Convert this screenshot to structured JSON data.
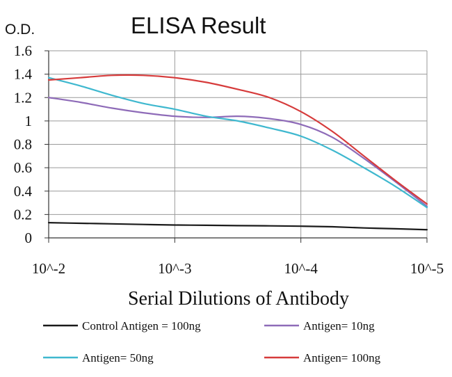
{
  "chart_data": {
    "type": "line",
    "title": "ELISA Result",
    "ylabel": "O.D.",
    "xlabel": "Serial Dilutions of Antibody",
    "categories": [
      "10^-2",
      "10^-3",
      "10^-4",
      "10^-5"
    ],
    "x": [
      0,
      0.25,
      0.5,
      0.75,
      1,
      1.25,
      1.5,
      1.75,
      2,
      2.25,
      2.5,
      2.75,
      3
    ],
    "ylim": [
      0,
      1.6
    ],
    "yticks": [
      "0",
      "0.2",
      "0.4",
      "0.6",
      "0.8",
      "1",
      "1.2",
      "1.4",
      "1.6"
    ],
    "grid": true,
    "legend_position": "bottom",
    "series": [
      {
        "name": "Control Antigen = 100ng",
        "color": "#1a1a1a",
        "values": [
          0.13,
          0.125,
          0.12,
          0.115,
          0.11,
          0.108,
          0.105,
          0.103,
          0.1,
          0.095,
          0.085,
          0.078,
          0.07
        ]
      },
      {
        "name": "Antigen= 10ng",
        "color": "#8e6bb8",
        "values": [
          1.2,
          1.16,
          1.11,
          1.07,
          1.04,
          1.03,
          1.04,
          1.02,
          0.97,
          0.86,
          0.68,
          0.48,
          0.27
        ]
      },
      {
        "name": "Antigen= 50ng",
        "color": "#3fb8cf",
        "values": [
          1.37,
          1.3,
          1.22,
          1.15,
          1.1,
          1.04,
          1.0,
          0.94,
          0.87,
          0.75,
          0.6,
          0.44,
          0.26
        ]
      },
      {
        "name": "Antigen= 100ng",
        "color": "#d63b3b",
        "values": [
          1.35,
          1.37,
          1.39,
          1.39,
          1.37,
          1.33,
          1.27,
          1.2,
          1.08,
          0.91,
          0.7,
          0.49,
          0.29
        ]
      }
    ]
  }
}
